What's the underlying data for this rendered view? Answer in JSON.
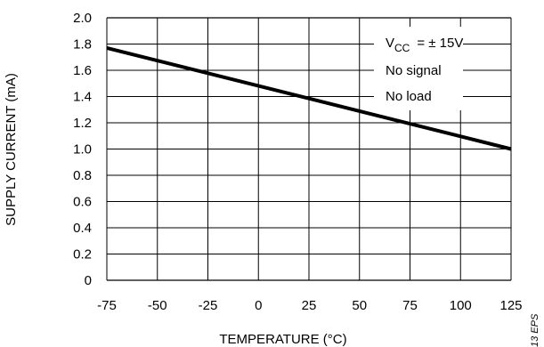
{
  "chart_data": {
    "type": "line",
    "title": "",
    "xlabel": "TEMPERATURE (°C)",
    "ylabel": "SUPPLY CURRENT (mA)",
    "xlim": [
      -75,
      125
    ],
    "ylim": [
      0,
      2.0
    ],
    "x_ticks": [
      -75,
      -50,
      -25,
      0,
      25,
      50,
      75,
      100,
      125
    ],
    "x_tick_labels": [
      "-75",
      "-50",
      "-25",
      "0",
      "25",
      "50",
      "75",
      "100",
      "125"
    ],
    "y_ticks": [
      0,
      0.2,
      0.4,
      0.6,
      0.8,
      1.0,
      1.2,
      1.4,
      1.6,
      1.8,
      2.0
    ],
    "y_tick_labels": [
      "0",
      "0.2",
      "0.4",
      "0.6",
      "0.8",
      "1.0",
      "1.2",
      "1.4",
      "1.6",
      "1.8",
      "2.0"
    ],
    "grid": true,
    "series": [
      {
        "x": [
          -75,
          125
        ],
        "y": [
          1.77,
          1.0
        ]
      }
    ],
    "annotations": {
      "vcc_main": "V",
      "vcc_sub": "CC",
      "vcc_value": "= ± 15V",
      "line2": "No signal",
      "line3": "No load"
    },
    "figure_id": "13 EPS"
  }
}
